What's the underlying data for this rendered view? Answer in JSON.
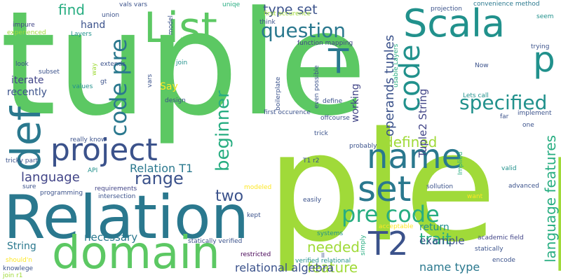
{
  "words": {
    "tuple": "tuple",
    "ple_p": "ple p",
    "relation": "Relation",
    "domain": "domain",
    "scala": "Scala",
    "list": "List",
    "def": "def",
    "project": "project",
    "name": "name",
    "set": "set",
    "t2": "T2",
    "p_small": "p",
    "code": "code",
    "specified": "specified",
    "pre_code": "pre code",
    "code_pre": "code pre",
    "t": "T",
    "question": "question",
    "beginner": "beginner",
    "type_set": "type set",
    "language_features": "language features",
    "find": "find",
    "range": "range",
    "two": "two",
    "language": "language",
    "relation_t1": "Relation T1",
    "needed": "needed",
    "feature": "feature",
    "relational_algebra": "relational algebra",
    "trait": "trait",
    "name_type": "name type",
    "example": "example",
    "necessary": "necessary",
    "defined": "defined",
    "operands_tuples": "operands tuples",
    "tuple2_string": "Tuple2 String",
    "working": "working",
    "return": "return",
    "string": "String",
    "iterate": "iterate",
    "recently": "recently",
    "hand": "hand",
    "say": "Say",
    "impure": "impure",
    "vals_vars": "vals vars",
    "uniqe": "uniqe",
    "projection": "projection",
    "convenience_method": "convenience method",
    "seem": "seem",
    "union": "union",
    "think": "think",
    "first_occurence": "first occurence",
    "experienced": "experienced",
    "layers": "Layers",
    "model": "model",
    "trying": "trying",
    "function_mapping": "function mapping",
    "usable_layers": "usable Layers",
    "look": "look",
    "extends": "extends",
    "join": "join",
    "way": "way",
    "now": "Now",
    "subset": "subset",
    "values": "values",
    "gt": "gt",
    "vars": "vars",
    "design": "design",
    "boilerplate": "boilerplate",
    "even_possible": "even possible",
    "define": "define",
    "lets_call": "Lets call",
    "offcourse": "offcourse",
    "implement": "implement",
    "far": "far",
    "one": "one",
    "really_know": "really know",
    "trick": "trick",
    "probably": "probably",
    "tricky_part": "tricky part",
    "t1_r2": "T1 r2",
    "implied": "Implied",
    "api": "API",
    "valid": "valid",
    "sure": "sure",
    "programming": "programming",
    "requirements": "requirements",
    "sollution": "sollution",
    "intersection": "intersection",
    "want": "want",
    "advanced": "advanced",
    "modeled": "modeled",
    "easily": "easily",
    "kept": "kept",
    "systems": "systems",
    "acceptable": "acceptable",
    "academic_field": "academic field",
    "statically_verified": "statically verified",
    "statically": "statically",
    "restricted": "restricted",
    "simply": "simply",
    "shouldn": "should'n",
    "knowlege": "knowlege",
    "verified_relational": "verified relational",
    "encode": "encode",
    "join_r1": "join r1",
    "ll": "ll"
  }
}
